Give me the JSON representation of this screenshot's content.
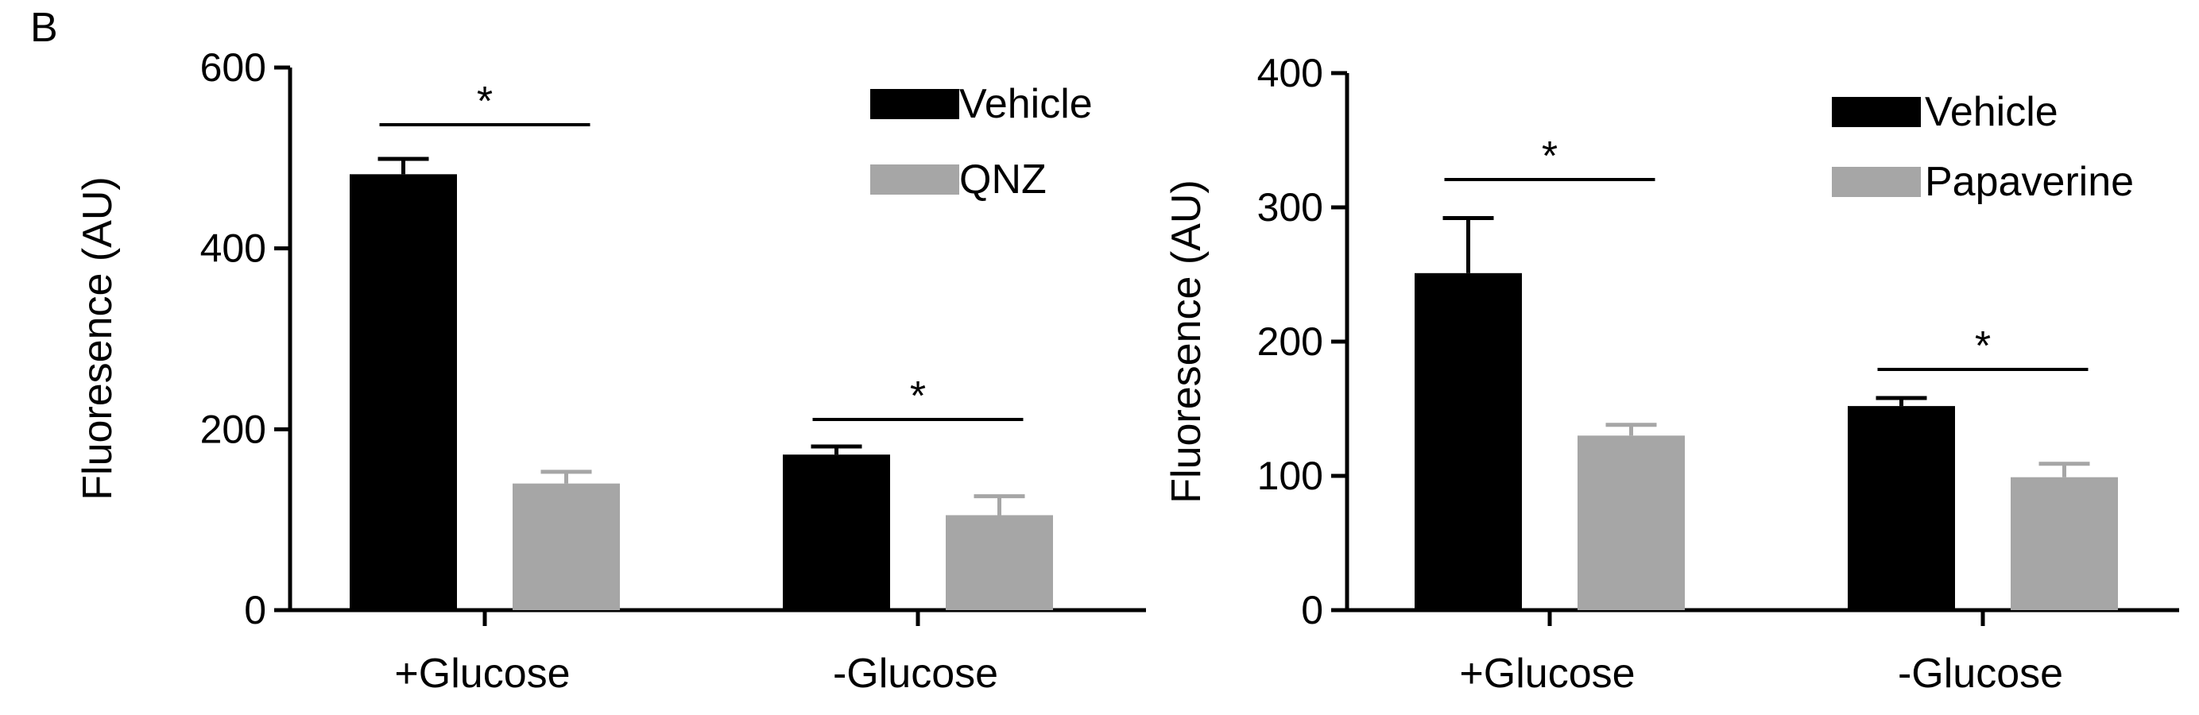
{
  "panel_label": "B",
  "chart_data": [
    {
      "type": "bar",
      "ylabel": "Fluoresence (AU)",
      "ylim": [
        0,
        600
      ],
      "yticks": [
        0,
        200,
        400,
        600
      ],
      "categories": [
        "+Glucose",
        "-Glucose"
      ],
      "series": [
        {
          "name": "Vehicle",
          "color": "#000000",
          "values": [
            482,
            172
          ],
          "errors": [
            17,
            9
          ]
        },
        {
          "name": "QNZ",
          "color": "#a6a6a6",
          "values": [
            140,
            105
          ],
          "errors": [
            13,
            21
          ]
        }
      ],
      "significance": [
        {
          "category": "+Glucose",
          "label": "*"
        },
        {
          "category": "-Glucose",
          "label": "*"
        }
      ],
      "legend_position": "top-right"
    },
    {
      "type": "bar",
      "ylabel": "Fluoresence (AU)",
      "ylim": [
        0,
        400
      ],
      "yticks": [
        0,
        100,
        200,
        300,
        400
      ],
      "categories": [
        "+Glucose",
        "-Glucose"
      ],
      "series": [
        {
          "name": "Vehicle",
          "color": "#000000",
          "values": [
            251,
            152
          ],
          "errors": [
            41,
            6
          ]
        },
        {
          "name": "Papaverine",
          "color": "#a6a6a6",
          "values": [
            130,
            99
          ],
          "errors": [
            8,
            10
          ]
        }
      ],
      "significance": [
        {
          "category": "+Glucose",
          "label": "*"
        },
        {
          "category": "-Glucose",
          "label": "*"
        }
      ],
      "legend_position": "top-right"
    }
  ]
}
